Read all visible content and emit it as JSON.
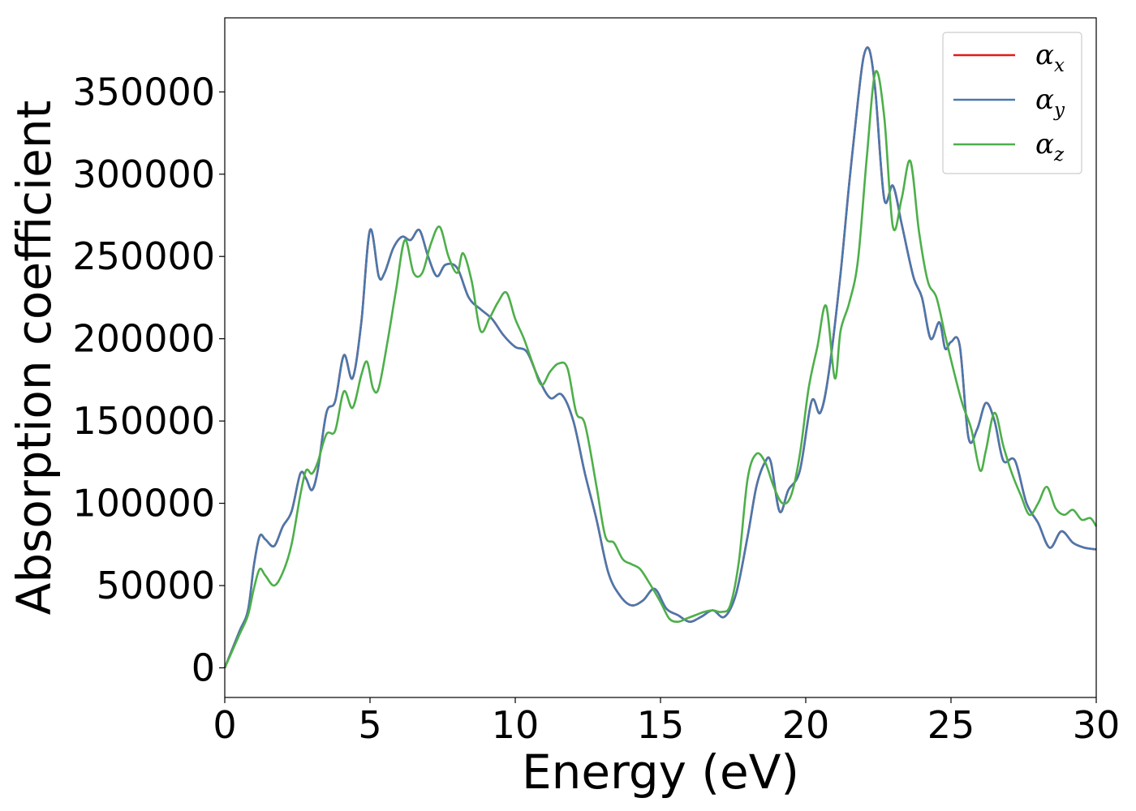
{
  "chart_data": {
    "type": "line",
    "title": "",
    "xlabel": "Energy (eV)",
    "ylabel": "Absorption coefficient",
    "xlim": [
      0,
      30
    ],
    "ylim": [
      -18000,
      395000
    ],
    "xticks": [
      0,
      5,
      10,
      15,
      20,
      25,
      30
    ],
    "yticks": [
      0,
      50000,
      100000,
      150000,
      200000,
      250000,
      300000,
      350000
    ],
    "grid": false,
    "legend_position": "top-right",
    "series": [
      {
        "name": "αx",
        "symbol": "α",
        "subscript": "x",
        "color": "#e41a1c",
        "x": [
          0,
          0.5,
          0.8,
          1.0,
          1.2,
          1.4,
          1.7,
          2.0,
          2.3,
          2.6,
          2.8,
          3.0,
          3.2,
          3.5,
          3.8,
          4.1,
          4.4,
          4.7,
          5.0,
          5.3,
          5.5,
          5.8,
          6.1,
          6.4,
          6.7,
          7.0,
          7.3,
          7.6,
          8.0,
          8.4,
          8.8,
          9.2,
          9.6,
          10.0,
          10.4,
          10.8,
          11.2,
          11.6,
          12.0,
          12.4,
          12.8,
          13.2,
          13.6,
          14.0,
          14.4,
          14.8,
          15.2,
          15.6,
          16.0,
          16.4,
          16.8,
          17.2,
          17.6,
          18.0,
          18.3,
          18.6,
          18.8,
          19.1,
          19.4,
          19.8,
          20.2,
          20.5,
          20.8,
          21.2,
          21.5,
          21.8,
          22.0,
          22.2,
          22.4,
          22.7,
          23.0,
          23.3,
          23.7,
          24.0,
          24.3,
          24.6,
          24.8,
          25.0,
          25.3,
          25.6,
          25.9,
          26.2,
          26.5,
          26.8,
          27.2,
          27.6,
          28.0,
          28.4,
          28.8,
          29.2,
          29.6,
          30.0
        ],
        "y": [
          0,
          22000,
          35000,
          62000,
          80000,
          78000,
          74000,
          86000,
          95000,
          118000,
          115000,
          108000,
          120000,
          155000,
          162000,
          190000,
          176000,
          210000,
          266000,
          238000,
          240000,
          255000,
          262000,
          260000,
          266000,
          250000,
          238000,
          245000,
          243000,
          225000,
          218000,
          212000,
          202000,
          195000,
          192000,
          176000,
          164000,
          166000,
          150000,
          118000,
          90000,
          58000,
          44000,
          38000,
          41000,
          48000,
          36000,
          32000,
          28000,
          31000,
          35000,
          31000,
          45000,
          80000,
          110000,
          125000,
          125000,
          95000,
          108000,
          120000,
          162000,
          155000,
          180000,
          240000,
          295000,
          345000,
          372000,
          375000,
          350000,
          285000,
          293000,
          270000,
          238000,
          225000,
          200000,
          210000,
          194000,
          198000,
          196000,
          140000,
          145000,
          161000,
          150000,
          126000,
          126000,
          100000,
          88000,
          73000,
          83000,
          76000,
          73000,
          72000
        ]
      },
      {
        "name": "αy",
        "symbol": "α",
        "subscript": "y",
        "color": "#4a78ac",
        "x": [
          0,
          0.5,
          0.8,
          1.0,
          1.2,
          1.4,
          1.7,
          2.0,
          2.3,
          2.6,
          2.8,
          3.0,
          3.2,
          3.5,
          3.8,
          4.1,
          4.4,
          4.7,
          5.0,
          5.3,
          5.5,
          5.8,
          6.1,
          6.4,
          6.7,
          7.0,
          7.3,
          7.6,
          8.0,
          8.4,
          8.8,
          9.2,
          9.6,
          10.0,
          10.4,
          10.8,
          11.2,
          11.6,
          12.0,
          12.4,
          12.8,
          13.2,
          13.6,
          14.0,
          14.4,
          14.8,
          15.2,
          15.6,
          16.0,
          16.4,
          16.8,
          17.2,
          17.6,
          18.0,
          18.3,
          18.6,
          18.8,
          19.1,
          19.4,
          19.8,
          20.2,
          20.5,
          20.8,
          21.2,
          21.5,
          21.8,
          22.0,
          22.2,
          22.4,
          22.7,
          23.0,
          23.3,
          23.7,
          24.0,
          24.3,
          24.6,
          24.8,
          25.0,
          25.3,
          25.6,
          25.9,
          26.2,
          26.5,
          26.8,
          27.2,
          27.6,
          28.0,
          28.4,
          28.8,
          29.2,
          29.6,
          30.0
        ],
        "y": [
          0,
          22000,
          35000,
          62000,
          80000,
          78000,
          74000,
          86000,
          95000,
          118000,
          115000,
          108000,
          120000,
          155000,
          162000,
          190000,
          176000,
          210000,
          266000,
          238000,
          240000,
          255000,
          262000,
          260000,
          266000,
          250000,
          238000,
          245000,
          243000,
          225000,
          218000,
          212000,
          202000,
          195000,
          192000,
          176000,
          164000,
          166000,
          150000,
          118000,
          90000,
          58000,
          44000,
          38000,
          41000,
          48000,
          36000,
          32000,
          28000,
          31000,
          35000,
          31000,
          45000,
          80000,
          110000,
          125000,
          125000,
          95000,
          108000,
          120000,
          162000,
          155000,
          180000,
          240000,
          295000,
          345000,
          372000,
          375000,
          350000,
          285000,
          293000,
          270000,
          238000,
          225000,
          200000,
          210000,
          194000,
          198000,
          196000,
          140000,
          145000,
          161000,
          150000,
          126000,
          126000,
          100000,
          88000,
          73000,
          83000,
          76000,
          73000,
          72000
        ]
      },
      {
        "name": "αz",
        "symbol": "α",
        "subscript": "z",
        "color": "#4daf4a",
        "x": [
          0,
          0.5,
          0.8,
          1.0,
          1.2,
          1.4,
          1.7,
          2.0,
          2.3,
          2.6,
          2.8,
          3.0,
          3.2,
          3.5,
          3.8,
          4.1,
          4.4,
          4.7,
          4.9,
          5.1,
          5.3,
          5.6,
          5.9,
          6.2,
          6.5,
          6.8,
          7.1,
          7.4,
          7.7,
          8.0,
          8.2,
          8.5,
          8.8,
          9.1,
          9.4,
          9.7,
          10.0,
          10.3,
          10.6,
          10.9,
          11.2,
          11.5,
          11.8,
          12.1,
          12.4,
          12.8,
          13.1,
          13.4,
          13.7,
          14.0,
          14.3,
          14.6,
          15.0,
          15.3,
          15.6,
          15.9,
          16.2,
          16.5,
          16.8,
          17.1,
          17.4,
          17.7,
          18.0,
          18.3,
          18.6,
          18.9,
          19.2,
          19.5,
          19.8,
          20.1,
          20.4,
          20.7,
          21.0,
          21.2,
          21.5,
          21.8,
          22.1,
          22.4,
          22.7,
          23.0,
          23.3,
          23.6,
          23.9,
          24.2,
          24.5,
          24.8,
          25.1,
          25.4,
          25.7,
          26.0,
          26.2,
          26.5,
          26.8,
          27.1,
          27.4,
          27.7,
          28.0,
          28.3,
          28.6,
          28.9,
          29.2,
          29.5,
          29.8,
          30.0
        ],
        "y": [
          0,
          20000,
          32000,
          48000,
          60000,
          56000,
          50000,
          58000,
          75000,
          105000,
          120000,
          118000,
          125000,
          142000,
          144000,
          168000,
          158000,
          178000,
          186000,
          170000,
          170000,
          198000,
          230000,
          260000,
          240000,
          240000,
          258000,
          268000,
          250000,
          240000,
          252000,
          235000,
          205000,
          212000,
          222000,
          228000,
          212000,
          200000,
          185000,
          172000,
          180000,
          185000,
          182000,
          155000,
          148000,
          110000,
          80000,
          76000,
          66000,
          63000,
          60000,
          52000,
          40000,
          30000,
          28000,
          30000,
          32000,
          34000,
          35000,
          34000,
          38000,
          65000,
          115000,
          130000,
          125000,
          110000,
          100000,
          105000,
          130000,
          170000,
          195000,
          220000,
          176000,
          205000,
          222000,
          248000,
          310000,
          362000,
          335000,
          268000,
          285000,
          308000,
          265000,
          235000,
          225000,
          202000,
          180000,
          160000,
          145000,
          120000,
          132000,
          155000,
          135000,
          118000,
          105000,
          93000,
          100000,
          110000,
          97000,
          93000,
          96000,
          90000,
          91000,
          86000
        ]
      }
    ]
  }
}
